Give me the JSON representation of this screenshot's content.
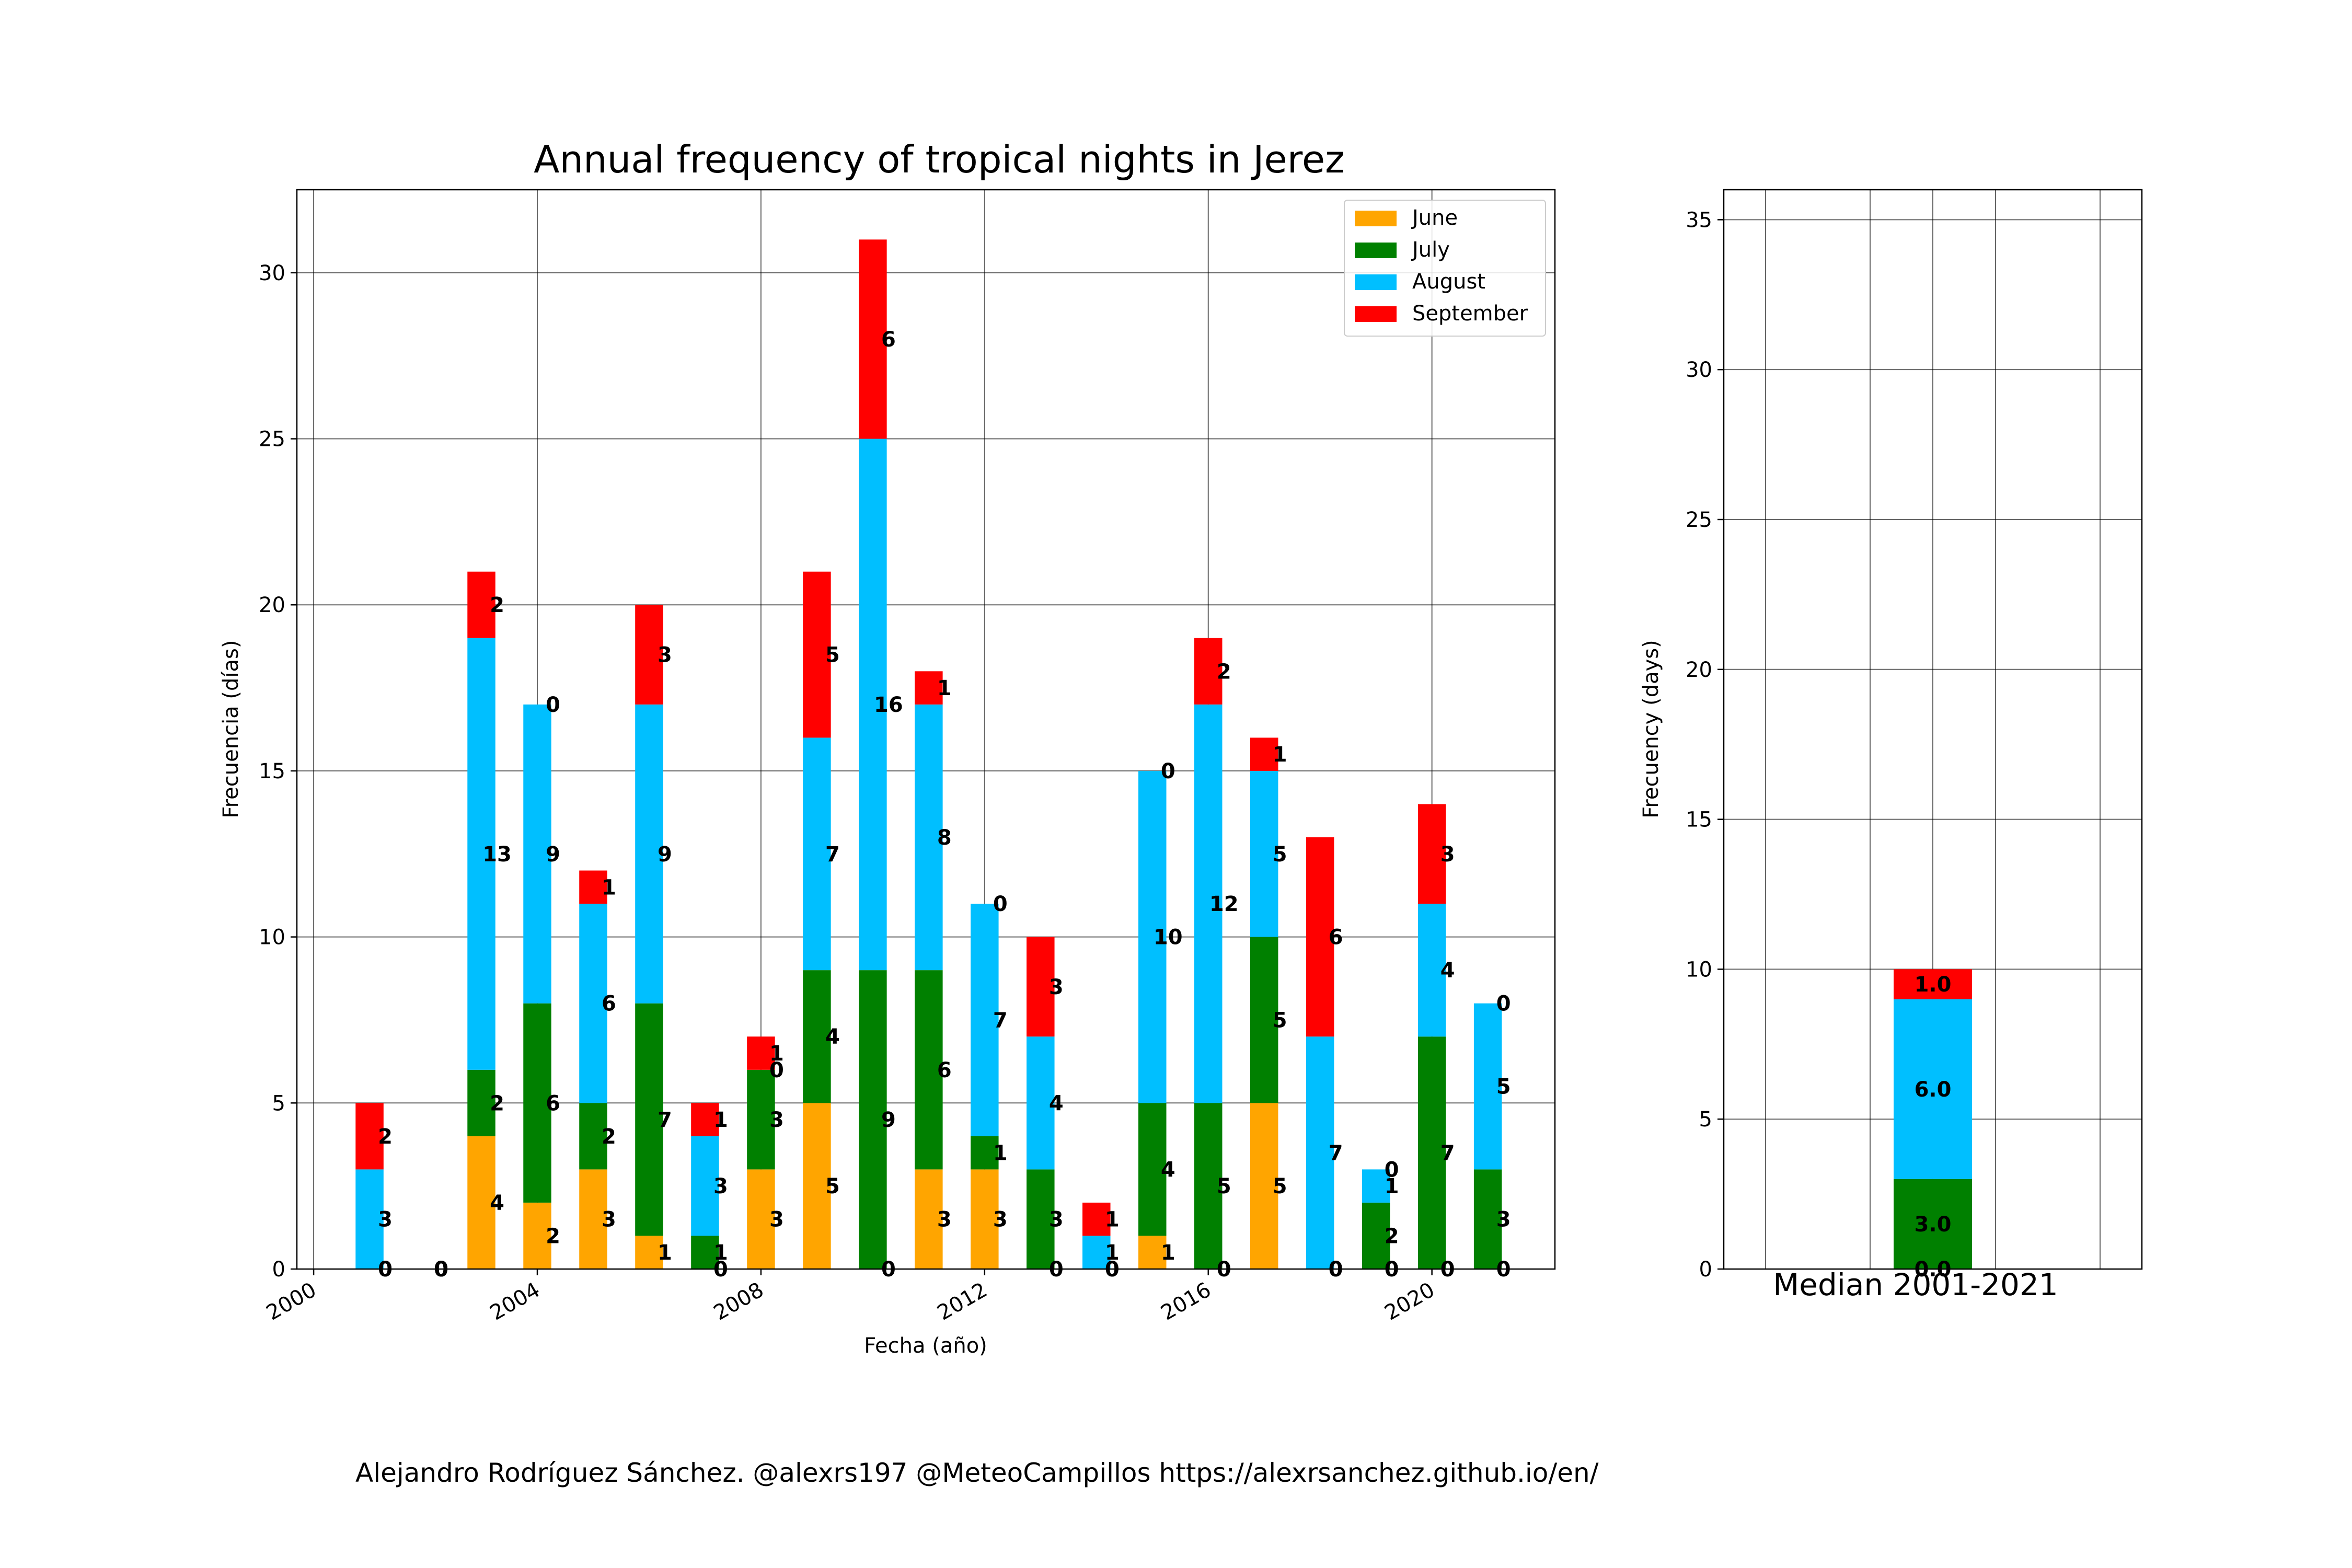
{
  "footer": "Alejandro Rodríguez Sánchez. @alexrs197 @MeteoCampillos   https://alexrsanchez.github.io/en/",
  "colors": {
    "June": "#ffa500",
    "July": "#008000",
    "August": "#00bfff",
    "September": "#ff0000"
  },
  "chart_data": [
    {
      "type": "bar",
      "stacked": true,
      "title": "Annual frequency of tropical nights in Jerez",
      "xlabel": "Fecha (año)",
      "ylabel": "Frecuencia (días)",
      "x": [
        2001,
        2002,
        2003,
        2004,
        2005,
        2006,
        2007,
        2008,
        2009,
        2010,
        2011,
        2012,
        2013,
        2014,
        2015,
        2016,
        2017,
        2018,
        2019,
        2020,
        2021
      ],
      "xticks": [
        "2000",
        "2004",
        "2008",
        "2012",
        "2016",
        "2020"
      ],
      "xlim": [
        1999.7,
        2022.2
      ],
      "ylim": [
        0,
        32.5
      ],
      "yticks": [
        "0",
        "5",
        "10",
        "15",
        "20",
        "25",
        "30"
      ],
      "grid": true,
      "legend": "top-right",
      "series": [
        {
          "name": "June",
          "values": [
            0,
            0,
            4,
            2,
            3,
            1,
            0,
            3,
            5,
            0,
            3,
            3,
            0,
            0,
            1,
            0,
            5,
            0,
            0,
            0,
            0
          ]
        },
        {
          "name": "July",
          "values": [
            0,
            0,
            2,
            6,
            2,
            7,
            1,
            3,
            4,
            9,
            6,
            1,
            3,
            0,
            4,
            5,
            5,
            0,
            2,
            7,
            3
          ]
        },
        {
          "name": "August",
          "values": [
            3,
            0,
            13,
            9,
            6,
            9,
            3,
            0,
            7,
            16,
            8,
            7,
            4,
            1,
            10,
            12,
            5,
            7,
            1,
            4,
            5
          ]
        },
        {
          "name": "September",
          "values": [
            2,
            0,
            2,
            0,
            1,
            3,
            1,
            1,
            5,
            6,
            1,
            0,
            3,
            1,
            0,
            2,
            1,
            6,
            0,
            3,
            0
          ]
        }
      ]
    },
    {
      "type": "bar",
      "stacked": true,
      "title": "",
      "xlabel": "Median 2001-2021",
      "ylabel": "Frecuency (days)",
      "ylim": [
        0,
        36
      ],
      "yticks": [
        "0",
        "5",
        "10",
        "15",
        "20",
        "25",
        "30",
        "35"
      ],
      "grid": true,
      "series": [
        {
          "name": "June",
          "values": [
            0.0
          ],
          "label": "0.0"
        },
        {
          "name": "July",
          "values": [
            3.0
          ],
          "label": "3.0"
        },
        {
          "name": "August",
          "values": [
            6.0
          ],
          "label": "6.0"
        },
        {
          "name": "September",
          "values": [
            1.0
          ],
          "label": "1.0"
        }
      ]
    }
  ]
}
